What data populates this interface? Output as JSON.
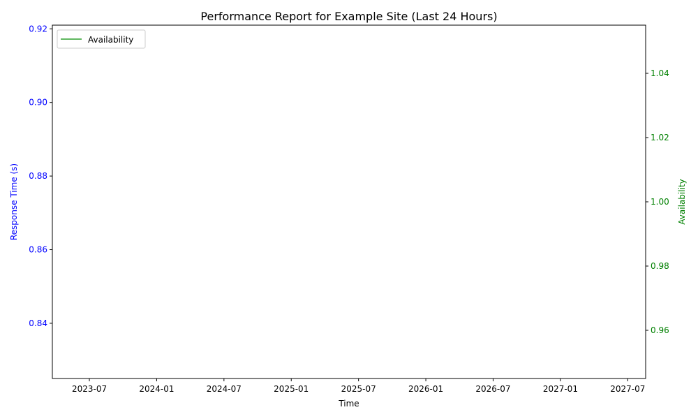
{
  "chart_data": {
    "type": "line",
    "title": "Performance Report for Example Site (Last 24 Hours)",
    "xlabel": "Time",
    "x_ticks": [
      "2023-07",
      "2024-01",
      "2024-07",
      "2025-01",
      "2025-07",
      "2026-01",
      "2026-07",
      "2027-01",
      "2027-07"
    ],
    "y_left": {
      "label": "Response Time (s)",
      "color": "#0000ff",
      "ticks": [
        "0.84",
        "0.86",
        "0.88",
        "0.90",
        "0.92"
      ],
      "ylim": [
        0.825,
        0.921
      ]
    },
    "y_right": {
      "label": "Availability",
      "color": "#008000",
      "ticks": [
        "0.96",
        "0.98",
        "1.00",
        "1.02",
        "1.04"
      ],
      "ylim": [
        0.945,
        1.055
      ]
    },
    "legend": {
      "position": "top-left",
      "entries": [
        {
          "label": "Availability",
          "color": "#2ca02c"
        }
      ]
    },
    "series": [
      {
        "name": "Availability",
        "axis": "right",
        "color": "#2ca02c",
        "x": [],
        "y": []
      }
    ],
    "grid": false
  }
}
